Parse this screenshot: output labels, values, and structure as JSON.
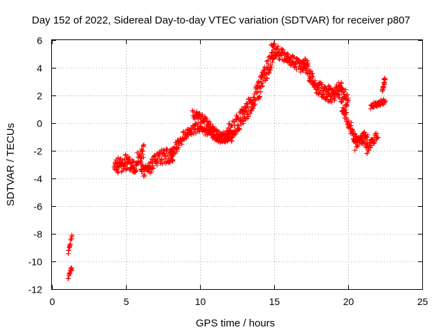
{
  "chart_data": {
    "type": "scatter",
    "title": "Day 152 of 2022, Sidereal Day-to-day VTEC variation (SDTVAR) for receiver p807",
    "xlabel": "GPS time / hours",
    "ylabel": "SDTVAR / TECUs",
    "xlim": [
      0,
      25
    ],
    "ylim": [
      -12,
      6
    ],
    "xticks": [
      0,
      5,
      10,
      15,
      20,
      25
    ],
    "yticks": [
      -12,
      -10,
      -8,
      -6,
      -4,
      -2,
      0,
      2,
      4,
      6
    ],
    "xtick_labels": [
      "0",
      "5",
      "10",
      "15",
      "20",
      "25"
    ],
    "ytick_labels": [
      "-12",
      "-10",
      "-8",
      "-6",
      "-4",
      "-2",
      "0",
      "2",
      "4",
      "6"
    ],
    "grid": true,
    "marker": "+",
    "color": "#ff0000",
    "series": [
      {
        "name": "SDTVAR",
        "trend_x": [
          1.1,
          1.15,
          1.2,
          1.25,
          1.3,
          1.35
        ],
        "trend_y": [
          -11.3,
          -10.6,
          -9.4,
          -8.8,
          -8.3,
          -8.1
        ],
        "segments": [
          {
            "x0": 1.1,
            "x1": 1.35,
            "n": 14,
            "y": [
              [
                1.1,
                -11.3
              ],
              [
                1.2,
                -10.8
              ],
              [
                1.3,
                -10.5
              ]
            ],
            "spread": 0.3
          },
          {
            "x0": 1.1,
            "x1": 1.35,
            "n": 14,
            "y": [
              [
                1.1,
                -9.4
              ],
              [
                1.2,
                -8.9
              ],
              [
                1.3,
                -8.2
              ]
            ],
            "spread": 0.35
          },
          {
            "x0": 4.2,
            "x1": 6.2,
            "n": 120,
            "y": [
              [
                4.2,
                -3.2
              ],
              [
                5.0,
                -2.8
              ],
              [
                5.6,
                -3.0
              ],
              [
                6.2,
                -2.0
              ]
            ],
            "spread": 1.2
          },
          {
            "x0": 6.0,
            "x1": 8.2,
            "n": 110,
            "y": [
              [
                6.0,
                -3.6
              ],
              [
                6.5,
                -3.2
              ],
              [
                7.0,
                -2.8
              ],
              [
                7.5,
                -2.4
              ],
              [
                8.2,
                -2.3
              ]
            ],
            "spread": 1.1
          },
          {
            "x0": 8.0,
            "x1": 10.0,
            "n": 90,
            "y": [
              [
                8.0,
                -2.2
              ],
              [
                8.5,
                -1.6
              ],
              [
                9.0,
                -0.8
              ],
              [
                9.5,
                -0.4
              ],
              [
                10.0,
                -0.3
              ]
            ],
            "spread": 0.8
          },
          {
            "x0": 9.5,
            "x1": 12.0,
            "n": 110,
            "y": [
              [
                9.5,
                0.6
              ],
              [
                10.3,
                0.3
              ],
              [
                10.8,
                -0.4
              ],
              [
                11.3,
                -1.0
              ],
              [
                12.0,
                -0.8
              ]
            ],
            "spread": 0.7
          },
          {
            "x0": 10.0,
            "x1": 12.2,
            "n": 90,
            "y": [
              [
                10.0,
                -0.4
              ],
              [
                10.7,
                -0.8
              ],
              [
                11.5,
                -1.2
              ],
              [
                12.2,
                -1.0
              ]
            ],
            "spread": 0.6
          },
          {
            "x0": 11.8,
            "x1": 15.0,
            "n": 200,
            "y": [
              [
                11.8,
                -0.9
              ],
              [
                12.5,
                0.0
              ],
              [
                13.2,
                1.0
              ],
              [
                14.0,
                2.5
              ],
              [
                14.5,
                3.8
              ],
              [
                15.0,
                5.2
              ]
            ],
            "spread": 1.4
          },
          {
            "x0": 14.8,
            "x1": 17.2,
            "n": 120,
            "y": [
              [
                14.8,
                5.5
              ],
              [
                15.4,
                5.0
              ],
              [
                16.0,
                4.6
              ],
              [
                16.6,
                4.2
              ],
              [
                17.2,
                4.0
              ]
            ],
            "spread": 0.9
          },
          {
            "x0": 17.0,
            "x1": 18.5,
            "n": 90,
            "y": [
              [
                17.0,
                4.6
              ],
              [
                17.4,
                3.5
              ],
              [
                17.9,
                2.6
              ],
              [
                18.5,
                2.2
              ]
            ],
            "spread": 1.1
          },
          {
            "x0": 18.5,
            "x1": 20.0,
            "n": 100,
            "y": [
              [
                18.5,
                2.2
              ],
              [
                19.0,
                2.0
              ],
              [
                19.5,
                2.5
              ],
              [
                20.0,
                1.5
              ]
            ],
            "spread": 1.2
          },
          {
            "x0": 19.5,
            "x1": 20.6,
            "n": 60,
            "y": [
              [
                19.5,
                1.4
              ],
              [
                20.0,
                0.2
              ],
              [
                20.4,
                -1.0
              ],
              [
                20.6,
                -1.4
              ]
            ],
            "spread": 1.0
          },
          {
            "x0": 20.4,
            "x1": 21.3,
            "n": 60,
            "y": [
              [
                20.4,
                -1.6
              ],
              [
                20.8,
                -1.2
              ],
              [
                21.3,
                -1.0
              ]
            ],
            "spread": 0.9
          },
          {
            "x0": 21.2,
            "x1": 22.0,
            "n": 40,
            "y": [
              [
                21.2,
                -2.0
              ],
              [
                21.6,
                -1.4
              ],
              [
                22.0,
                -0.8
              ]
            ],
            "spread": 0.6
          },
          {
            "x0": 21.5,
            "x1": 22.5,
            "n": 40,
            "y": [
              [
                21.5,
                1.2
              ],
              [
                22.0,
                1.4
              ],
              [
                22.5,
                1.6
              ]
            ],
            "spread": 0.4
          },
          {
            "x0": 22.3,
            "x1": 22.5,
            "n": 20,
            "y": [
              [
                22.3,
                2.2
              ],
              [
                22.4,
                2.8
              ],
              [
                22.5,
                3.4
              ]
            ],
            "spread": 0.5
          }
        ]
      }
    ]
  }
}
